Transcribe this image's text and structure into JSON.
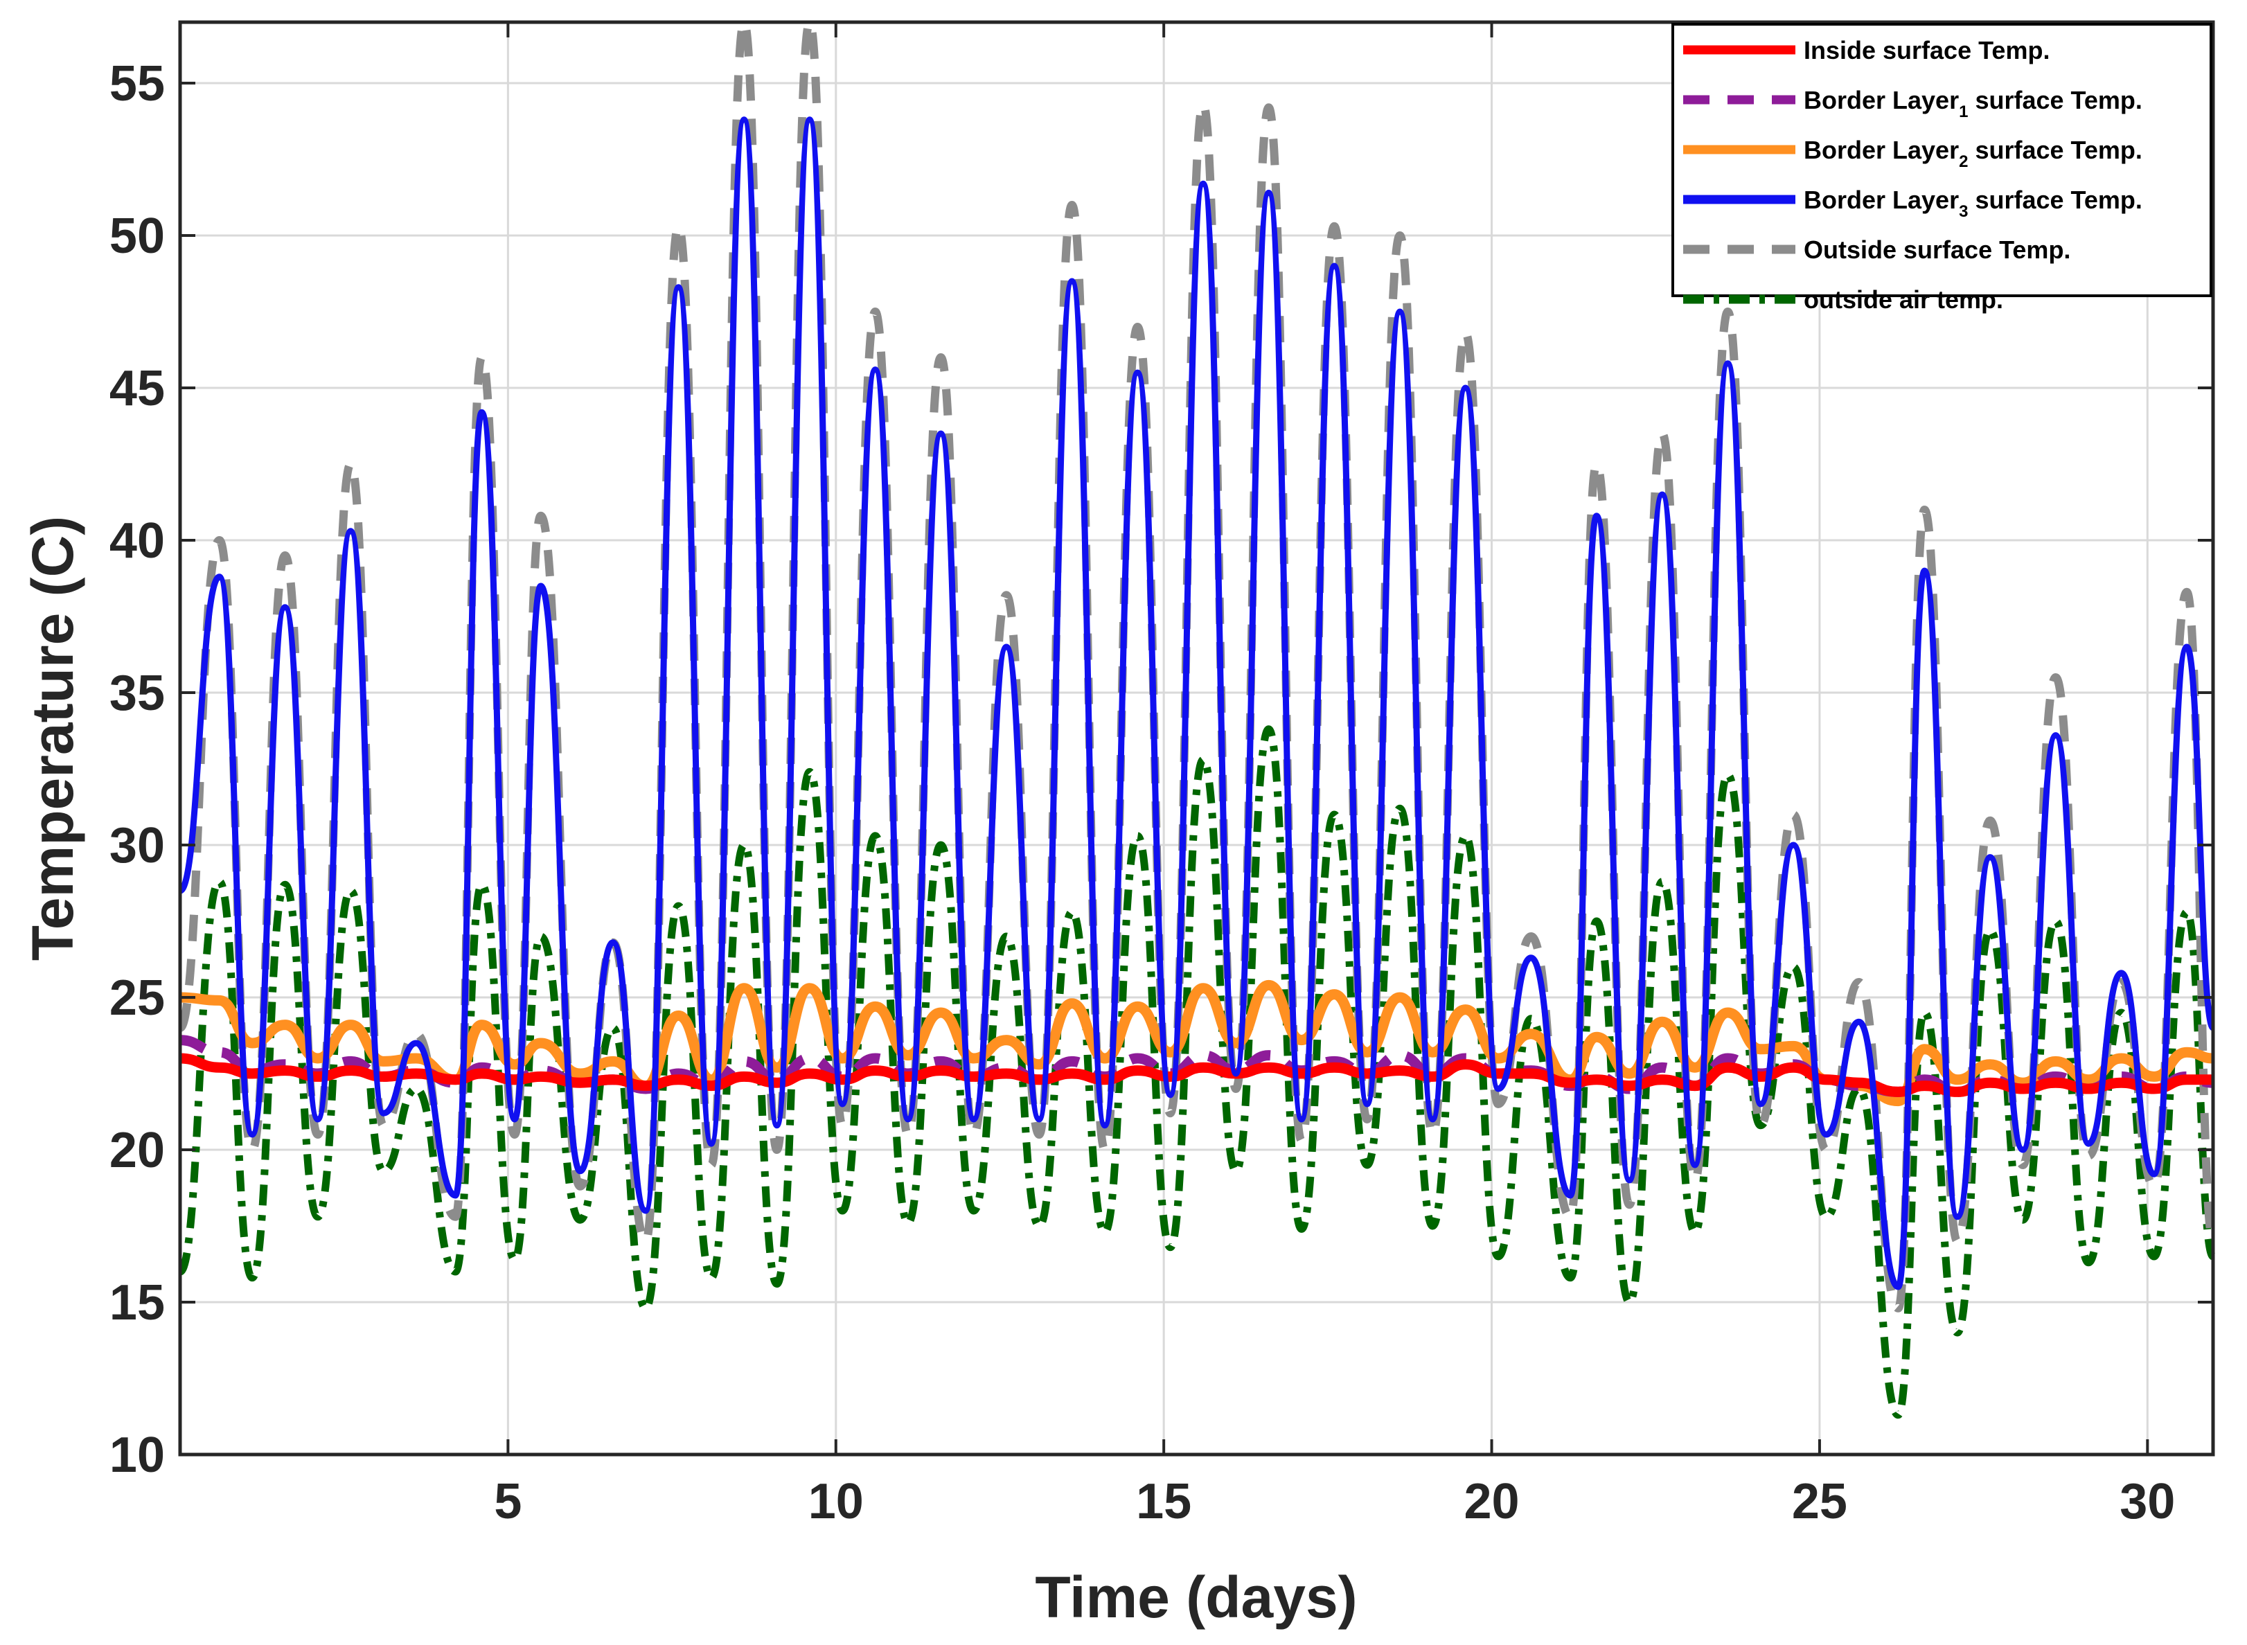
{
  "chart_data": {
    "type": "line",
    "title": "",
    "xlabel": "Time (days)",
    "ylabel": "Temperature (C)",
    "xlim": [
      0,
      31
    ],
    "ylim": [
      10,
      57
    ],
    "xticks": [
      5,
      10,
      15,
      20,
      25,
      30
    ],
    "yticks": [
      10,
      15,
      20,
      25,
      30,
      35,
      40,
      45,
      50,
      55
    ],
    "grid": true,
    "legend_position": "top-right",
    "days": {
      "peak_day": [
        0.6,
        1.6,
        2.6,
        3.6,
        4.6,
        5.5,
        6.6,
        7.6,
        8.6,
        9.6,
        10.6,
        11.6,
        12.6,
        13.6,
        14.6,
        15.6,
        16.6,
        17.6,
        18.6,
        19.6,
        20.6,
        21.6,
        22.6,
        23.6,
        24.6,
        25.6,
        26.6,
        27.6,
        28.6,
        29.6,
        30.6
      ],
      "min_day": [
        1.1,
        2.1,
        3.1,
        4.2,
        5.1,
        6.1,
        7.1,
        8.1,
        9.1,
        10.1,
        11.1,
        12.1,
        13.1,
        14.1,
        15.1,
        16.1,
        17.1,
        18.1,
        19.1,
        20.1,
        21.2,
        22.1,
        23.1,
        24.1,
        25.1,
        26.2,
        27.1,
        28.1,
        29.1,
        30.1
      ]
    },
    "series": [
      {
        "name": "Inside surface Temp.",
        "sub": "",
        "name_tail": "",
        "color": "#ff0000",
        "style": "solid",
        "start": 23.0,
        "peaks": [
          22.7,
          22.6,
          22.6,
          22.5,
          22.5,
          22.4,
          22.3,
          22.3,
          22.4,
          22.5,
          22.6,
          22.6,
          22.5,
          22.5,
          22.6,
          22.7,
          22.7,
          22.7,
          22.6,
          22.8,
          22.5,
          22.3,
          22.3,
          22.7,
          22.7,
          22.2,
          22.1,
          22.2,
          22.2,
          22.2,
          22.3
        ],
        "mins": [
          22.5,
          22.4,
          22.4,
          22.3,
          22.3,
          22.2,
          22.1,
          22.1,
          22.2,
          22.3,
          22.4,
          22.4,
          22.3,
          22.3,
          22.4,
          22.5,
          22.5,
          22.5,
          22.4,
          22.5,
          22.2,
          22.1,
          22.1,
          22.4,
          22.3,
          21.9,
          21.9,
          22.0,
          22.0,
          22.0
        ],
        "end": 22.3
      },
      {
        "name": "Border Layer",
        "sub": "1",
        "name_tail": " surface Temp.",
        "color": "#8e1c99",
        "style": "dashed",
        "start": 23.6,
        "peaks": [
          23.2,
          22.8,
          22.9,
          22.6,
          22.7,
          22.6,
          22.3,
          22.5,
          22.9,
          23.0,
          23.0,
          22.9,
          22.7,
          22.9,
          23.0,
          23.1,
          23.1,
          22.9,
          23.1,
          23.0,
          22.6,
          22.4,
          22.7,
          23.0,
          22.8,
          22.1,
          22.3,
          22.3,
          22.4,
          22.4,
          22.4
        ],
        "mins": [
          22.6,
          22.5,
          22.4,
          22.2,
          22.3,
          22.2,
          22.0,
          22.1,
          22.3,
          22.4,
          22.5,
          22.4,
          22.3,
          22.4,
          22.5,
          22.6,
          22.6,
          22.5,
          22.5,
          22.5,
          22.1,
          22.0,
          22.1,
          22.5,
          22.3,
          21.9,
          21.9,
          22.0,
          22.0,
          22.0
        ],
        "end": 22.2
      },
      {
        "name": "Border Layer",
        "sub": "2",
        "name_tail": " surface Temp.",
        "color": "#ff9021",
        "style": "solid",
        "start": 25.0,
        "peaks": [
          24.9,
          24.1,
          24.1,
          23.0,
          24.1,
          23.5,
          22.9,
          24.4,
          25.3,
          25.3,
          24.7,
          24.5,
          23.6,
          24.8,
          24.7,
          25.3,
          25.4,
          25.1,
          25.0,
          24.6,
          23.8,
          23.7,
          24.2,
          24.5,
          23.4,
          22.1,
          23.3,
          22.8,
          22.9,
          23.0,
          23.2
        ],
        "mins": [
          23.5,
          23.0,
          22.9,
          22.3,
          22.8,
          22.5,
          22.1,
          22.3,
          22.7,
          23.0,
          23.1,
          23.0,
          22.8,
          23.0,
          23.2,
          23.5,
          23.6,
          23.2,
          23.2,
          23.0,
          22.3,
          22.5,
          22.7,
          23.3,
          22.3,
          21.6,
          22.3,
          22.2,
          22.3,
          22.4
        ],
        "end": 23.0
      },
      {
        "name": "Border Layer",
        "sub": "3",
        "name_tail": " surface Temp.",
        "color": "#1010f0",
        "style": "solid",
        "start": 28.5,
        "peaks": [
          38.8,
          37.8,
          40.3,
          23.5,
          44.2,
          38.5,
          26.8,
          48.3,
          53.8,
          53.8,
          45.6,
          43.5,
          36.5,
          48.5,
          45.5,
          51.7,
          51.4,
          49.0,
          47.5,
          45.0,
          26.3,
          40.8,
          41.5,
          45.8,
          30.0,
          24.2,
          39.0,
          29.6,
          33.6,
          25.8,
          36.5
        ],
        "mins": [
          20.5,
          21.0,
          21.2,
          18.5,
          21.0,
          19.3,
          18.0,
          20.2,
          20.8,
          21.5,
          21.0,
          21.0,
          21.0,
          20.8,
          21.8,
          22.5,
          21.0,
          21.5,
          21.0,
          22.0,
          18.5,
          19.0,
          19.5,
          21.5,
          20.5,
          15.5,
          17.8,
          20.0,
          20.2,
          19.2
        ],
        "end": 24.0
      },
      {
        "name": "Outside surface Temp.",
        "sub": "",
        "name_tail": "",
        "color": "#8c8c8c",
        "style": "dashed",
        "start": 24.0,
        "peaks": [
          40.0,
          39.5,
          42.5,
          23.8,
          46.0,
          40.8,
          26.8,
          50.3,
          57.0,
          57.0,
          47.5,
          46.0,
          38.2,
          51.0,
          47.0,
          54.3,
          54.2,
          50.3,
          50.0,
          46.8,
          27.0,
          42.5,
          43.5,
          47.5,
          31.0,
          25.5,
          41.0,
          30.8,
          35.5,
          25.5,
          38.3
        ],
        "mins": [
          20.0,
          20.5,
          20.8,
          17.8,
          20.5,
          18.8,
          17.0,
          19.5,
          20.0,
          20.8,
          20.5,
          20.5,
          20.5,
          20.0,
          21.2,
          22.0,
          20.3,
          21.0,
          20.5,
          21.5,
          17.8,
          18.2,
          19.0,
          20.8,
          20.0,
          14.8,
          17.0,
          19.5,
          19.8,
          18.8
        ],
        "end": 17.0
      },
      {
        "name": "outside air temp.",
        "sub": "",
        "name_tail": "",
        "color": "#006600",
        "style": "dashdot",
        "start": 16.0,
        "peaks": [
          28.8,
          28.7,
          28.5,
          22.0,
          28.7,
          27.0,
          24.0,
          28.0,
          30.0,
          32.4,
          30.3,
          30.0,
          27.0,
          27.8,
          30.3,
          32.8,
          33.8,
          31.0,
          31.2,
          30.3,
          24.3,
          27.5,
          28.8,
          32.3,
          26.0,
          22.0,
          24.5,
          27.2,
          27.5,
          24.5,
          27.8
        ],
        "mins": [
          15.8,
          17.8,
          19.3,
          16.0,
          16.4,
          17.7,
          14.8,
          15.8,
          15.6,
          18.0,
          17.6,
          18.0,
          17.5,
          17.3,
          16.8,
          19.3,
          17.4,
          19.5,
          17.5,
          16.5,
          15.8,
          15.0,
          17.3,
          20.8,
          17.8,
          11.3,
          14.0,
          17.7,
          16.3,
          16.5
        ],
        "end": 16.5
      }
    ]
  }
}
